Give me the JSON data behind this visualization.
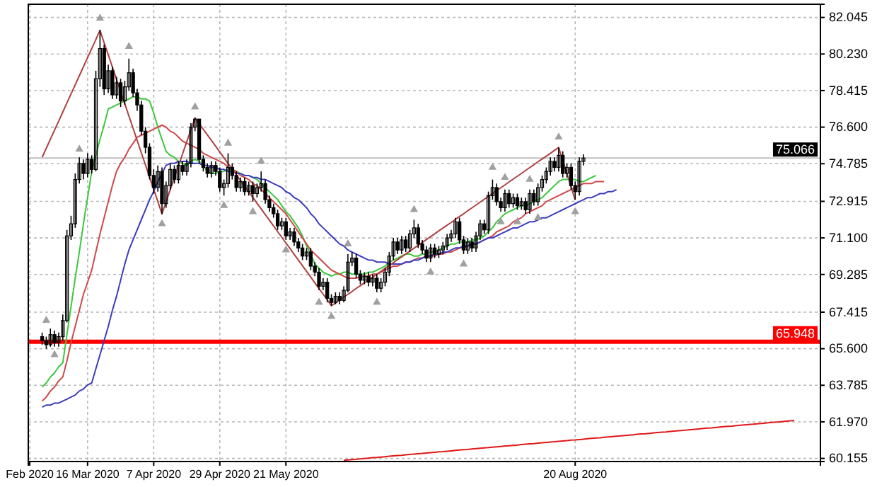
{
  "chart_data": {
    "type": "candlestick",
    "categories": [
      "Feb 2020",
      null,
      null,
      null,
      null,
      null,
      null,
      null,
      null,
      null,
      null,
      null,
      null,
      null,
      "16 Mar 2020",
      null,
      null,
      null,
      null,
      null,
      null,
      null,
      null,
      null,
      null,
      null,
      null,
      null,
      null,
      null,
      "7 Apr 2020",
      null,
      null,
      null,
      null,
      null,
      null,
      null,
      null,
      null,
      null,
      null,
      null,
      null,
      null,
      null,
      "29 Apr 2020",
      null,
      null,
      null,
      null,
      null,
      null,
      null,
      null,
      null,
      null,
      null,
      null,
      null,
      null,
      null,
      "21 May 2020",
      null,
      null,
      null,
      null,
      null,
      null,
      null,
      null,
      null,
      null,
      null,
      null,
      null,
      null,
      null,
      null,
      null,
      null,
      null,
      null,
      null,
      null,
      null,
      null,
      null,
      null,
      null,
      null,
      null,
      null,
      null,
      null,
      null,
      null,
      null,
      null,
      null,
      null,
      null,
      null,
      null,
      null,
      null,
      null,
      null,
      null,
      null,
      null,
      null,
      null,
      null,
      null,
      null,
      null,
      null,
      null,
      null,
      null,
      null,
      null,
      null,
      null,
      null,
      null,
      null,
      null,
      null,
      null,
      null,
      "20 Aug 2020",
      null,
      null,
      null,
      null,
      null,
      null,
      null,
      null,
      null,
      null,
      null,
      null,
      null,
      null,
      null,
      null,
      null,
      null,
      null,
      null,
      null,
      null,
      null,
      null,
      null,
      null,
      null,
      null,
      null,
      null,
      null,
      null,
      null,
      null,
      null,
      null,
      null,
      null,
      null,
      null,
      null,
      null,
      null,
      null,
      null,
      null,
      null,
      null,
      null,
      null,
      null,
      null,
      null,
      null,
      null,
      null,
      null,
      null,
      null
    ],
    "color": "#000000",
    "ohlc": [
      null,
      null,
      null,
      [
        66.2,
        66.4,
        65.8,
        66.0
      ],
      [
        66.0,
        66.2,
        65.6,
        65.8
      ],
      [
        65.8,
        66.6,
        65.7,
        66.3
      ],
      [
        66.3,
        66.5,
        65.7,
        65.9
      ],
      [
        65.9,
        66.4,
        65.7,
        66.2
      ],
      [
        66.2,
        67.3,
        66.0,
        67.0
      ],
      [
        67.0,
        71.5,
        66.9,
        71.2
      ],
      [
        71.2,
        72.2,
        71.0,
        71.8
      ],
      [
        71.8,
        74.3,
        71.6,
        74.0
      ],
      [
        74.0,
        75.1,
        73.8,
        74.8
      ],
      [
        74.8,
        75.0,
        74.0,
        74.3
      ],
      [
        74.3,
        75.3,
        74.1,
        75.0
      ],
      [
        75.0,
        75.2,
        74.3,
        74.5
      ],
      [
        74.5,
        79.4,
        74.4,
        79.0
      ],
      [
        79.0,
        81.41,
        78.6,
        80.5
      ],
      [
        80.5,
        80.7,
        78.2,
        78.5
      ],
      [
        78.5,
        79.7,
        78.3,
        79.4
      ],
      [
        79.4,
        79.6,
        78.0,
        78.2
      ],
      [
        78.2,
        79.1,
        78.0,
        78.8
      ],
      [
        78.8,
        79.0,
        77.6,
        77.9
      ],
      [
        77.9,
        78.9,
        77.7,
        78.6
      ],
      [
        78.6,
        80.0,
        78.4,
        79.3
      ],
      [
        79.3,
        79.5,
        78.1,
        78.3
      ],
      [
        78.3,
        78.5,
        77.4,
        77.7
      ],
      [
        77.7,
        77.9,
        76.2,
        76.4
      ],
      [
        76.4,
        76.6,
        75.3,
        75.6
      ],
      [
        75.6,
        75.8,
        74.0,
        74.2
      ],
      [
        74.2,
        74.5,
        73.3,
        73.6
      ],
      [
        73.6,
        74.7,
        73.4,
        74.4
      ],
      [
        74.4,
        74.6,
        72.29,
        72.8
      ],
      [
        72.8,
        73.9,
        72.6,
        73.7
      ],
      [
        73.7,
        74.8,
        73.5,
        74.5
      ],
      [
        74.5,
        74.7,
        73.8,
        74.0
      ],
      [
        74.0,
        74.9,
        73.8,
        74.7
      ],
      [
        74.7,
        74.9,
        74.2,
        74.4
      ],
      [
        74.4,
        75.0,
        74.2,
        74.8
      ],
      [
        74.8,
        76.8,
        74.6,
        76.6
      ],
      [
        76.6,
        77.06,
        76.4,
        77.0
      ],
      [
        77.0,
        77.0,
        74.8,
        75.0
      ],
      [
        75.0,
        75.2,
        74.4,
        74.6
      ],
      [
        74.6,
        74.8,
        74.1,
        74.3
      ],
      [
        74.3,
        74.9,
        74.1,
        74.7
      ],
      [
        74.7,
        74.9,
        74.2,
        74.4
      ],
      [
        74.4,
        74.6,
        73.4,
        73.6
      ],
      [
        73.6,
        74.0,
        73.2,
        73.8
      ],
      [
        73.8,
        75.3,
        73.6,
        74.6
      ],
      [
        74.6,
        74.8,
        74.0,
        74.2
      ],
      [
        74.2,
        74.4,
        73.4,
        73.6
      ],
      [
        73.6,
        74.1,
        73.4,
        73.9
      ],
      [
        73.9,
        74.1,
        73.2,
        73.4
      ],
      [
        73.4,
        73.9,
        73.2,
        73.7
      ],
      [
        73.7,
        73.9,
        72.9,
        73.3
      ],
      [
        73.3,
        73.8,
        73.1,
        73.6
      ],
      [
        73.6,
        74.4,
        73.4,
        73.8
      ],
      [
        73.8,
        74.0,
        72.8,
        73.0
      ],
      [
        73.0,
        73.2,
        72.4,
        72.6
      ],
      [
        72.6,
        72.8,
        72.1,
        72.3
      ],
      [
        72.3,
        72.5,
        71.5,
        71.7
      ],
      [
        71.7,
        72.1,
        71.5,
        71.9
      ],
      [
        71.9,
        72.1,
        71.0,
        71.2
      ],
      [
        71.2,
        71.6,
        71.0,
        71.4
      ],
      [
        71.4,
        71.6,
        70.7,
        70.9
      ],
      [
        70.9,
        71.1,
        70.4,
        70.6
      ],
      [
        70.6,
        70.8,
        70.0,
        70.2
      ],
      [
        70.2,
        70.6,
        70.0,
        70.4
      ],
      [
        70.4,
        70.6,
        69.5,
        69.7
      ],
      [
        69.7,
        69.9,
        69.2,
        69.4
      ],
      [
        69.4,
        69.6,
        68.5,
        68.7
      ],
      [
        68.7,
        69.1,
        68.5,
        68.9
      ],
      [
        68.9,
        69.1,
        67.9,
        68.1
      ],
      [
        68.1,
        68.3,
        67.73,
        67.9
      ],
      [
        67.9,
        68.4,
        67.8,
        68.2
      ],
      [
        68.2,
        68.4,
        67.8,
        68.0
      ],
      [
        68.0,
        68.7,
        67.9,
        68.5
      ],
      [
        68.5,
        70.3,
        68.4,
        69.9
      ],
      [
        69.9,
        70.4,
        69.7,
        70.1
      ],
      [
        70.1,
        70.3,
        69.1,
        69.3
      ],
      [
        69.3,
        69.5,
        68.8,
        69.0
      ],
      [
        69.0,
        69.4,
        68.8,
        69.2
      ],
      [
        69.2,
        69.4,
        68.7,
        68.9
      ],
      [
        68.9,
        69.3,
        68.7,
        69.1
      ],
      [
        69.1,
        69.3,
        68.4,
        68.6
      ],
      [
        68.6,
        69.1,
        68.4,
        68.9
      ],
      [
        68.9,
        69.6,
        68.7,
        69.4
      ],
      [
        69.4,
        70.4,
        69.2,
        70.2
      ],
      [
        70.2,
        71.1,
        70.0,
        70.9
      ],
      [
        70.9,
        71.1,
        70.3,
        70.5
      ],
      [
        70.5,
        71.2,
        70.3,
        71.0
      ],
      [
        71.0,
        71.2,
        70.4,
        70.6
      ],
      [
        70.6,
        71.5,
        70.4,
        71.3
      ],
      [
        71.3,
        72.0,
        71.1,
        71.6
      ],
      [
        71.6,
        71.8,
        70.6,
        70.8
      ],
      [
        70.8,
        71.0,
        70.3,
        70.5
      ],
      [
        70.5,
        70.7,
        69.9,
        70.1
      ],
      [
        70.1,
        70.8,
        69.9,
        70.6
      ],
      [
        70.6,
        70.8,
        70.1,
        70.3
      ],
      [
        70.3,
        70.7,
        70.1,
        70.5
      ],
      [
        70.5,
        70.9,
        70.3,
        70.7
      ],
      [
        70.7,
        71.3,
        70.5,
        71.1
      ],
      [
        71.1,
        71.5,
        70.9,
        71.3
      ],
      [
        71.3,
        72.1,
        71.1,
        71.9
      ],
      [
        71.9,
        72.1,
        70.8,
        71.0
      ],
      [
        71.0,
        71.2,
        70.3,
        70.5
      ],
      [
        70.5,
        71.1,
        70.3,
        70.9
      ],
      [
        70.9,
        71.1,
        70.4,
        70.6
      ],
      [
        70.6,
        71.4,
        70.4,
        71.2
      ],
      [
        71.2,
        72.0,
        71.0,
        71.8
      ],
      [
        71.8,
        72.0,
        71.3,
        71.5
      ],
      [
        71.5,
        73.4,
        71.3,
        73.2
      ],
      [
        73.2,
        74.0,
        73.0,
        73.6
      ],
      [
        73.6,
        73.8,
        72.7,
        72.9
      ],
      [
        72.9,
        73.1,
        72.4,
        72.6
      ],
      [
        72.6,
        73.5,
        72.4,
        73.3
      ],
      [
        73.3,
        73.5,
        72.6,
        72.8
      ],
      [
        72.8,
        73.3,
        72.6,
        73.1
      ],
      [
        73.1,
        73.3,
        72.5,
        72.7
      ],
      [
        72.7,
        73.1,
        72.5,
        72.9
      ],
      [
        72.9,
        73.1,
        72.3,
        72.5
      ],
      [
        72.5,
        73.5,
        72.3,
        73.3
      ],
      [
        73.3,
        73.5,
        72.7,
        72.9
      ],
      [
        72.9,
        73.8,
        72.7,
        73.6
      ],
      [
        73.6,
        74.2,
        73.4,
        74.0
      ],
      [
        74.0,
        74.6,
        73.8,
        74.4
      ],
      [
        74.4,
        75.1,
        74.2,
        74.9
      ],
      [
        74.9,
        75.1,
        74.4,
        74.6
      ],
      [
        74.6,
        75.59,
        74.4,
        75.2
      ],
      [
        75.2,
        75.4,
        74.1,
        74.3
      ],
      [
        74.3,
        74.8,
        74.1,
        74.6
      ],
      [
        74.6,
        74.8,
        73.5,
        73.7
      ],
      [
        73.7,
        73.9,
        72.99,
        73.4
      ],
      [
        73.4,
        75.1,
        73.2,
        74.9
      ],
      [
        74.9,
        75.25,
        74.7,
        75.066
      ],
      null,
      null,
      null,
      null,
      null,
      null,
      null,
      null,
      null,
      null,
      null,
      null,
      null,
      null,
      null,
      null,
      null,
      null,
      null,
      null,
      null,
      null,
      null,
      null,
      null,
      null,
      null,
      null,
      null,
      null,
      null,
      null,
      null,
      null,
      null,
      null,
      null,
      null,
      null,
      null,
      null,
      null,
      null,
      null,
      null,
      null,
      null,
      null,
      null,
      null,
      null,
      null,
      null,
      null,
      null,
      null,
      null
    ],
    "series": [
      {
        "type": "line",
        "color": "#3cc83c",
        "values": [
          null,
          null,
          null,
          63.7,
          63.9,
          64.2,
          64.4,
          64.7,
          64.9,
          66.3,
          67.7,
          69.1,
          70.4,
          71.8,
          73.1,
          74.4,
          75.2,
          76.0,
          76.7,
          77.5,
          77.6,
          77.7,
          77.8,
          77.9,
          78.0,
          78.1,
          78.1,
          78.0,
          78.0,
          77.9,
          77.3,
          76.6,
          76.0,
          75.4,
          75.2,
          75.1,
          74.9,
          74.8,
          74.7,
          74.9,
          75.0,
          74.9,
          74.7,
          74.4,
          74.3,
          74.3,
          74.4,
          74.4,
          74.5,
          74.5,
          74.4,
          74.3,
          74.2,
          74.2,
          74.1,
          74.0,
          73.8,
          73.6,
          73.4,
          73.2,
          73.0,
          72.7,
          72.4,
          72.2,
          71.9,
          71.6,
          71.2,
          70.7,
          70.3,
          69.8,
          69.6,
          69.4,
          69.3,
          69.2,
          69.3,
          69.3,
          69.4,
          69.4,
          69.3,
          69.3,
          69.3,
          69.3,
          69.4,
          69.4,
          69.5,
          69.6,
          69.7,
          69.9,
          70.0,
          70.1,
          70.2,
          70.3,
          70.3,
          70.2,
          70.2,
          70.3,
          70.3,
          70.4,
          70.4,
          70.5,
          70.6,
          70.7,
          70.8,
          70.8,
          70.9,
          70.9,
          70.9,
          71.0,
          71.0,
          71.1,
          71.2,
          71.4,
          71.6,
          71.9,
          72.1,
          72.3,
          72.4,
          72.5,
          72.6,
          72.7,
          72.7,
          72.8,
          72.9,
          73.0,
          73.1,
          73.3,
          73.5,
          73.7,
          73.9,
          74.0,
          74.0,
          74.0,
          74.0,
          73.9,
          73.9,
          74.0,
          74.1,
          74.2,
          null,
          null,
          null,
          null,
          null,
          null,
          null,
          null,
          null,
          null,
          null,
          null,
          null,
          null,
          null,
          null,
          null,
          null,
          null,
          null,
          null,
          null,
          null,
          null,
          null,
          null,
          null,
          null,
          null,
          null,
          null,
          null,
          null,
          null,
          null,
          null,
          null,
          null,
          null,
          null,
          null,
          null,
          null,
          null,
          null,
          null,
          null,
          null,
          null,
          null,
          null,
          null,
          null,
          null
        ]
      },
      {
        "type": "line",
        "color": "#d04848",
        "values": [
          null,
          null,
          null,
          63.0,
          63.2,
          63.5,
          63.7,
          64.0,
          64.2,
          65.0,
          65.9,
          66.7,
          67.5,
          68.3,
          68.9,
          69.5,
          70.4,
          71.3,
          72.1,
          72.9,
          73.7,
          74.4,
          74.8,
          75.1,
          75.5,
          75.8,
          76.1,
          76.2,
          76.3,
          76.4,
          76.5,
          76.6,
          76.7,
          76.6,
          76.4,
          76.3,
          76.1,
          75.9,
          75.8,
          75.7,
          75.6,
          75.5,
          75.3,
          75.2,
          75.1,
          75.0,
          74.9,
          74.8,
          74.6,
          74.5,
          74.4,
          74.2,
          74.1,
          74.0,
          73.8,
          73.7,
          73.5,
          73.3,
          73.1,
          72.9,
          72.7,
          72.5,
          72.3,
          72.0,
          71.7,
          71.4,
          71.1,
          70.8,
          70.5,
          70.3,
          70.1,
          69.9,
          69.7,
          69.5,
          69.4,
          69.3,
          69.2,
          69.1,
          69.1,
          69.1,
          69.2,
          69.2,
          69.2,
          69.3,
          69.3,
          69.4,
          69.5,
          69.6,
          69.7,
          69.7,
          69.8,
          69.9,
          69.9,
          70.0,
          70.1,
          70.1,
          70.2,
          70.2,
          70.2,
          70.3,
          70.3,
          70.4,
          70.4,
          70.5,
          70.6,
          70.6,
          70.7,
          70.8,
          70.8,
          70.9,
          71.0,
          71.1,
          71.2,
          71.4,
          71.5,
          71.6,
          71.7,
          71.9,
          72.0,
          72.1,
          72.3,
          72.4,
          72.5,
          72.6,
          72.7,
          72.9,
          73.0,
          73.1,
          73.2,
          73.3,
          73.4,
          73.5,
          73.6,
          73.7,
          73.8,
          73.8,
          73.8,
          73.9,
          73.9,
          73.9,
          null,
          null,
          null,
          null,
          null,
          null,
          null,
          null,
          null,
          null,
          null,
          null,
          null,
          null,
          null,
          null,
          null,
          null,
          null,
          null,
          null,
          null,
          null,
          null,
          null,
          null,
          null,
          null,
          null,
          null,
          null,
          null,
          null,
          null,
          null,
          null,
          null,
          null,
          null,
          null,
          null,
          null,
          null,
          null,
          null,
          null,
          null,
          null,
          null,
          null,
          null,
          null
        ]
      },
      {
        "type": "line",
        "color": "#3c3cc0",
        "values": [
          null,
          null,
          null,
          62.7,
          62.8,
          62.8,
          62.9,
          62.9,
          63.0,
          63.1,
          63.2,
          63.3,
          63.5,
          63.6,
          63.8,
          63.9,
          64.6,
          65.3,
          66.0,
          66.7,
          67.5,
          68.2,
          69.0,
          69.8,
          70.5,
          71.0,
          71.5,
          72.0,
          72.5,
          73.0,
          73.4,
          73.9,
          74.3,
          74.7,
          74.8,
          74.8,
          74.9,
          74.9,
          74.9,
          74.8,
          74.8,
          74.8,
          74.7,
          74.7,
          74.6,
          74.6,
          74.5,
          74.5,
          74.4,
          74.4,
          74.3,
          74.3,
          74.2,
          74.2,
          74.1,
          74.1,
          74.0,
          74.0,
          73.9,
          73.8,
          73.7,
          73.6,
          73.4,
          73.3,
          73.1,
          73.0,
          72.8,
          72.6,
          72.3,
          72.1,
          71.8,
          71.6,
          71.4,
          71.2,
          71.0,
          70.8,
          70.7,
          70.5,
          70.4,
          70.3,
          70.2,
          70.1,
          70.0,
          70.0,
          69.9,
          69.9,
          69.9,
          69.8,
          69.8,
          69.8,
          69.8,
          69.9,
          69.9,
          70.0,
          70.0,
          70.1,
          70.2,
          70.2,
          70.3,
          70.3,
          70.4,
          70.4,
          70.5,
          70.6,
          70.6,
          70.7,
          70.7,
          70.8,
          70.8,
          70.9,
          71.0,
          71.1,
          71.1,
          71.2,
          71.3,
          71.4,
          71.5,
          71.6,
          71.6,
          71.7,
          71.8,
          71.9,
          71.9,
          72.0,
          72.1,
          72.1,
          72.2,
          72.3,
          72.4,
          72.5,
          72.6,
          72.7,
          72.8,
          72.9,
          73.0,
          73.1,
          73.1,
          73.2,
          73.3,
          73.3,
          73.4,
          73.4,
          73.5,
          null,
          null,
          null,
          null,
          null,
          null,
          null,
          null,
          null,
          null,
          null,
          null,
          null,
          null,
          null,
          null,
          null,
          null,
          null,
          null,
          null,
          null,
          null,
          null,
          null,
          null,
          null,
          null,
          null,
          null,
          null,
          null,
          null,
          null,
          null,
          null,
          null,
          null,
          null,
          null,
          null,
          null,
          null,
          null,
          null,
          null,
          null,
          null,
          null
        ]
      },
      {
        "type": "line",
        "color": "#b04040",
        "values": [
          null,
          null,
          null,
          75.1,
          75.55,
          76.0,
          76.45,
          76.9,
          77.35,
          77.8,
          78.25,
          78.7,
          79.15,
          79.6,
          80.05,
          80.5,
          80.95,
          81.41,
          80.79,
          80.19,
          79.58,
          78.97,
          78.37,
          77.76,
          77.15,
          76.55,
          75.94,
          75.33,
          74.73,
          74.12,
          73.51,
          72.91,
          72.29,
          72.9,
          73.49,
          74.09,
          74.68,
          75.28,
          75.87,
          76.47,
          77.06,
          76.78,
          76.49,
          76.21,
          75.93,
          75.65,
          75.36,
          75.08,
          74.8,
          74.52,
          74.24,
          73.95,
          73.67,
          73.39,
          73.11,
          72.82,
          72.54,
          72.26,
          71.98,
          71.7,
          71.41,
          71.13,
          70.85,
          70.57,
          70.28,
          70.0,
          69.72,
          69.44,
          69.16,
          68.87,
          68.59,
          68.31,
          68.03,
          67.73,
          67.87,
          68.02,
          68.16,
          68.3,
          68.44,
          68.59,
          68.73,
          68.87,
          69.02,
          69.16,
          69.3,
          69.44,
          69.59,
          69.73,
          69.87,
          70.02,
          70.16,
          70.3,
          70.45,
          70.59,
          70.73,
          70.87,
          71.02,
          71.16,
          71.3,
          71.45,
          71.59,
          71.73,
          71.87,
          72.02,
          72.16,
          72.3,
          72.45,
          72.59,
          72.73,
          72.88,
          73.02,
          73.16,
          73.3,
          73.45,
          73.59,
          73.73,
          73.88,
          74.02,
          74.16,
          74.3,
          74.45,
          74.59,
          74.73,
          74.88,
          75.02,
          75.16,
          75.3,
          75.45,
          75.59,
          74.94,
          74.29,
          73.64,
          72.99,
          null,
          null,
          null,
          null,
          null,
          null,
          null,
          null,
          null,
          null,
          null,
          null,
          null,
          null,
          null,
          null,
          null,
          null,
          null,
          null,
          null,
          null,
          null,
          null,
          null,
          null,
          null,
          null,
          null,
          null,
          null,
          null,
          null,
          null,
          null,
          null,
          null,
          null,
          null,
          null,
          null,
          null,
          null,
          null,
          null,
          null,
          null,
          null,
          null,
          null,
          null,
          null,
          null,
          null,
          null,
          null,
          null,
          null,
          null
        ]
      },
      {
        "type": "line",
        "color": "#e01818",
        "values": [
          null,
          null,
          null,
          null,
          null,
          null,
          null,
          null,
          null,
          null,
          null,
          null,
          null,
          null,
          null,
          null,
          null,
          null,
          null,
          null,
          null,
          null,
          null,
          null,
          null,
          null,
          null,
          null,
          null,
          null,
          null,
          null,
          null,
          null,
          null,
          null,
          null,
          null,
          null,
          null,
          null,
          null,
          null,
          null,
          null,
          null,
          null,
          null,
          null,
          null,
          null,
          null,
          null,
          null,
          null,
          null,
          null,
          null,
          null,
          null,
          null,
          null,
          null,
          null,
          null,
          null,
          null,
          null,
          null,
          null,
          null,
          null,
          null,
          null,
          null,
          null,
          60.06,
          60.08,
          60.1,
          60.11,
          60.13,
          60.15,
          60.17,
          60.19,
          60.2,
          60.22,
          60.24,
          60.26,
          60.28,
          60.3,
          60.31,
          60.33,
          60.35,
          60.37,
          60.39,
          60.4,
          60.42,
          60.44,
          60.46,
          60.48,
          60.49,
          60.51,
          60.53,
          60.55,
          60.57,
          60.59,
          60.6,
          60.62,
          60.64,
          60.66,
          60.68,
          60.69,
          60.71,
          60.73,
          60.75,
          60.77,
          60.78,
          60.8,
          60.82,
          60.84,
          60.86,
          60.88,
          60.89,
          60.91,
          60.93,
          60.95,
          60.97,
          60.98,
          61.0,
          61.02,
          61.04,
          61.06,
          61.07,
          61.09,
          61.11,
          61.13,
          61.15,
          61.17,
          61.18,
          61.2,
          61.22,
          61.24,
          61.26,
          61.27,
          61.29,
          61.31,
          61.33,
          61.35,
          61.37,
          61.38,
          61.4,
          61.42,
          61.44,
          61.46,
          61.47,
          61.49,
          61.51,
          61.53,
          61.55,
          61.56,
          61.58,
          61.6,
          61.62,
          61.64,
          61.66,
          61.67,
          61.69,
          61.71,
          61.73,
          61.75,
          61.76,
          61.78,
          61.8,
          61.82,
          61.84,
          61.85,
          61.87,
          61.89,
          61.91,
          61.93,
          61.95,
          61.96,
          61.98,
          62.0,
          62.02,
          62.04,
          null,
          null,
          null,
          null,
          null,
          null
        ]
      },
      {
        "type": "scatter",
        "color": "#a0a0a0",
        "marker": "triangle",
        "values": [
          null,
          null,
          null,
          null,
          67.0,
          null,
          65.3,
          null,
          null,
          null,
          null,
          null,
          75.5,
          null,
          null,
          null,
          null,
          82.0,
          null,
          null,
          null,
          null,
          null,
          null,
          80.6,
          null,
          null,
          null,
          null,
          null,
          null,
          null,
          71.8,
          null,
          null,
          null,
          null,
          null,
          null,
          null,
          77.6,
          null,
          null,
          null,
          null,
          null,
          null,
          72.7,
          75.8,
          null,
          null,
          null,
          null,
          null,
          72.4,
          null,
          74.9,
          null,
          null,
          null,
          null,
          null,
          70.5,
          null,
          null,
          null,
          null,
          null,
          null,
          null,
          67.9,
          null,
          null,
          67.2,
          null,
          null,
          null,
          70.8,
          null,
          null,
          null,
          null,
          null,
          null,
          67.9,
          null,
          null,
          null,
          null,
          null,
          null,
          null,
          null,
          72.5,
          null,
          null,
          null,
          69.4,
          null,
          null,
          null,
          null,
          null,
          null,
          null,
          69.8,
          null,
          null,
          null,
          null,
          null,
          null,
          74.6,
          null,
          71.9,
          74.1,
          null,
          null,
          71.9,
          null,
          null,
          74.0,
          null,
          72.1,
          null,
          null,
          null,
          null,
          76.1,
          null,
          null,
          null,
          72.4,
          null,
          null,
          null,
          null,
          null,
          null,
          null,
          null,
          null,
          null,
          null,
          null,
          null,
          null,
          null,
          null,
          null,
          null,
          null,
          null,
          null,
          null,
          null,
          null,
          null,
          null,
          null,
          null,
          null,
          null,
          null,
          null,
          null,
          null,
          null,
          null,
          null,
          null,
          null,
          null,
          null,
          null,
          null,
          null,
          null,
          null,
          null,
          null,
          null,
          null,
          null,
          null,
          null,
          null,
          null,
          null,
          null,
          null,
          null
        ]
      }
    ],
    "ylim": [
      60.0,
      82.7
    ],
    "yticks": [
      60.155,
      {
        "value": 61.97,
        "label": "61.970"
      },
      63.785,
      {
        "value": 65.6,
        "label": "65.600"
      },
      67.415,
      69.285,
      {
        "value": 71.1,
        "label": "71.100"
      },
      72.915,
      74.785,
      {
        "value": 76.6,
        "label": "76.600"
      },
      78.415,
      {
        "value": 80.23,
        "label": "80.230"
      },
      82.045
    ],
    "ref_lines": [
      {
        "axis": "y",
        "value": 75.066,
        "label": "75.066",
        "color": "#c0c0c0"
      },
      {
        "axis": "y",
        "value": 65.948,
        "label": "65.948",
        "color": "#ff0000"
      }
    ],
    "grid": true
  }
}
